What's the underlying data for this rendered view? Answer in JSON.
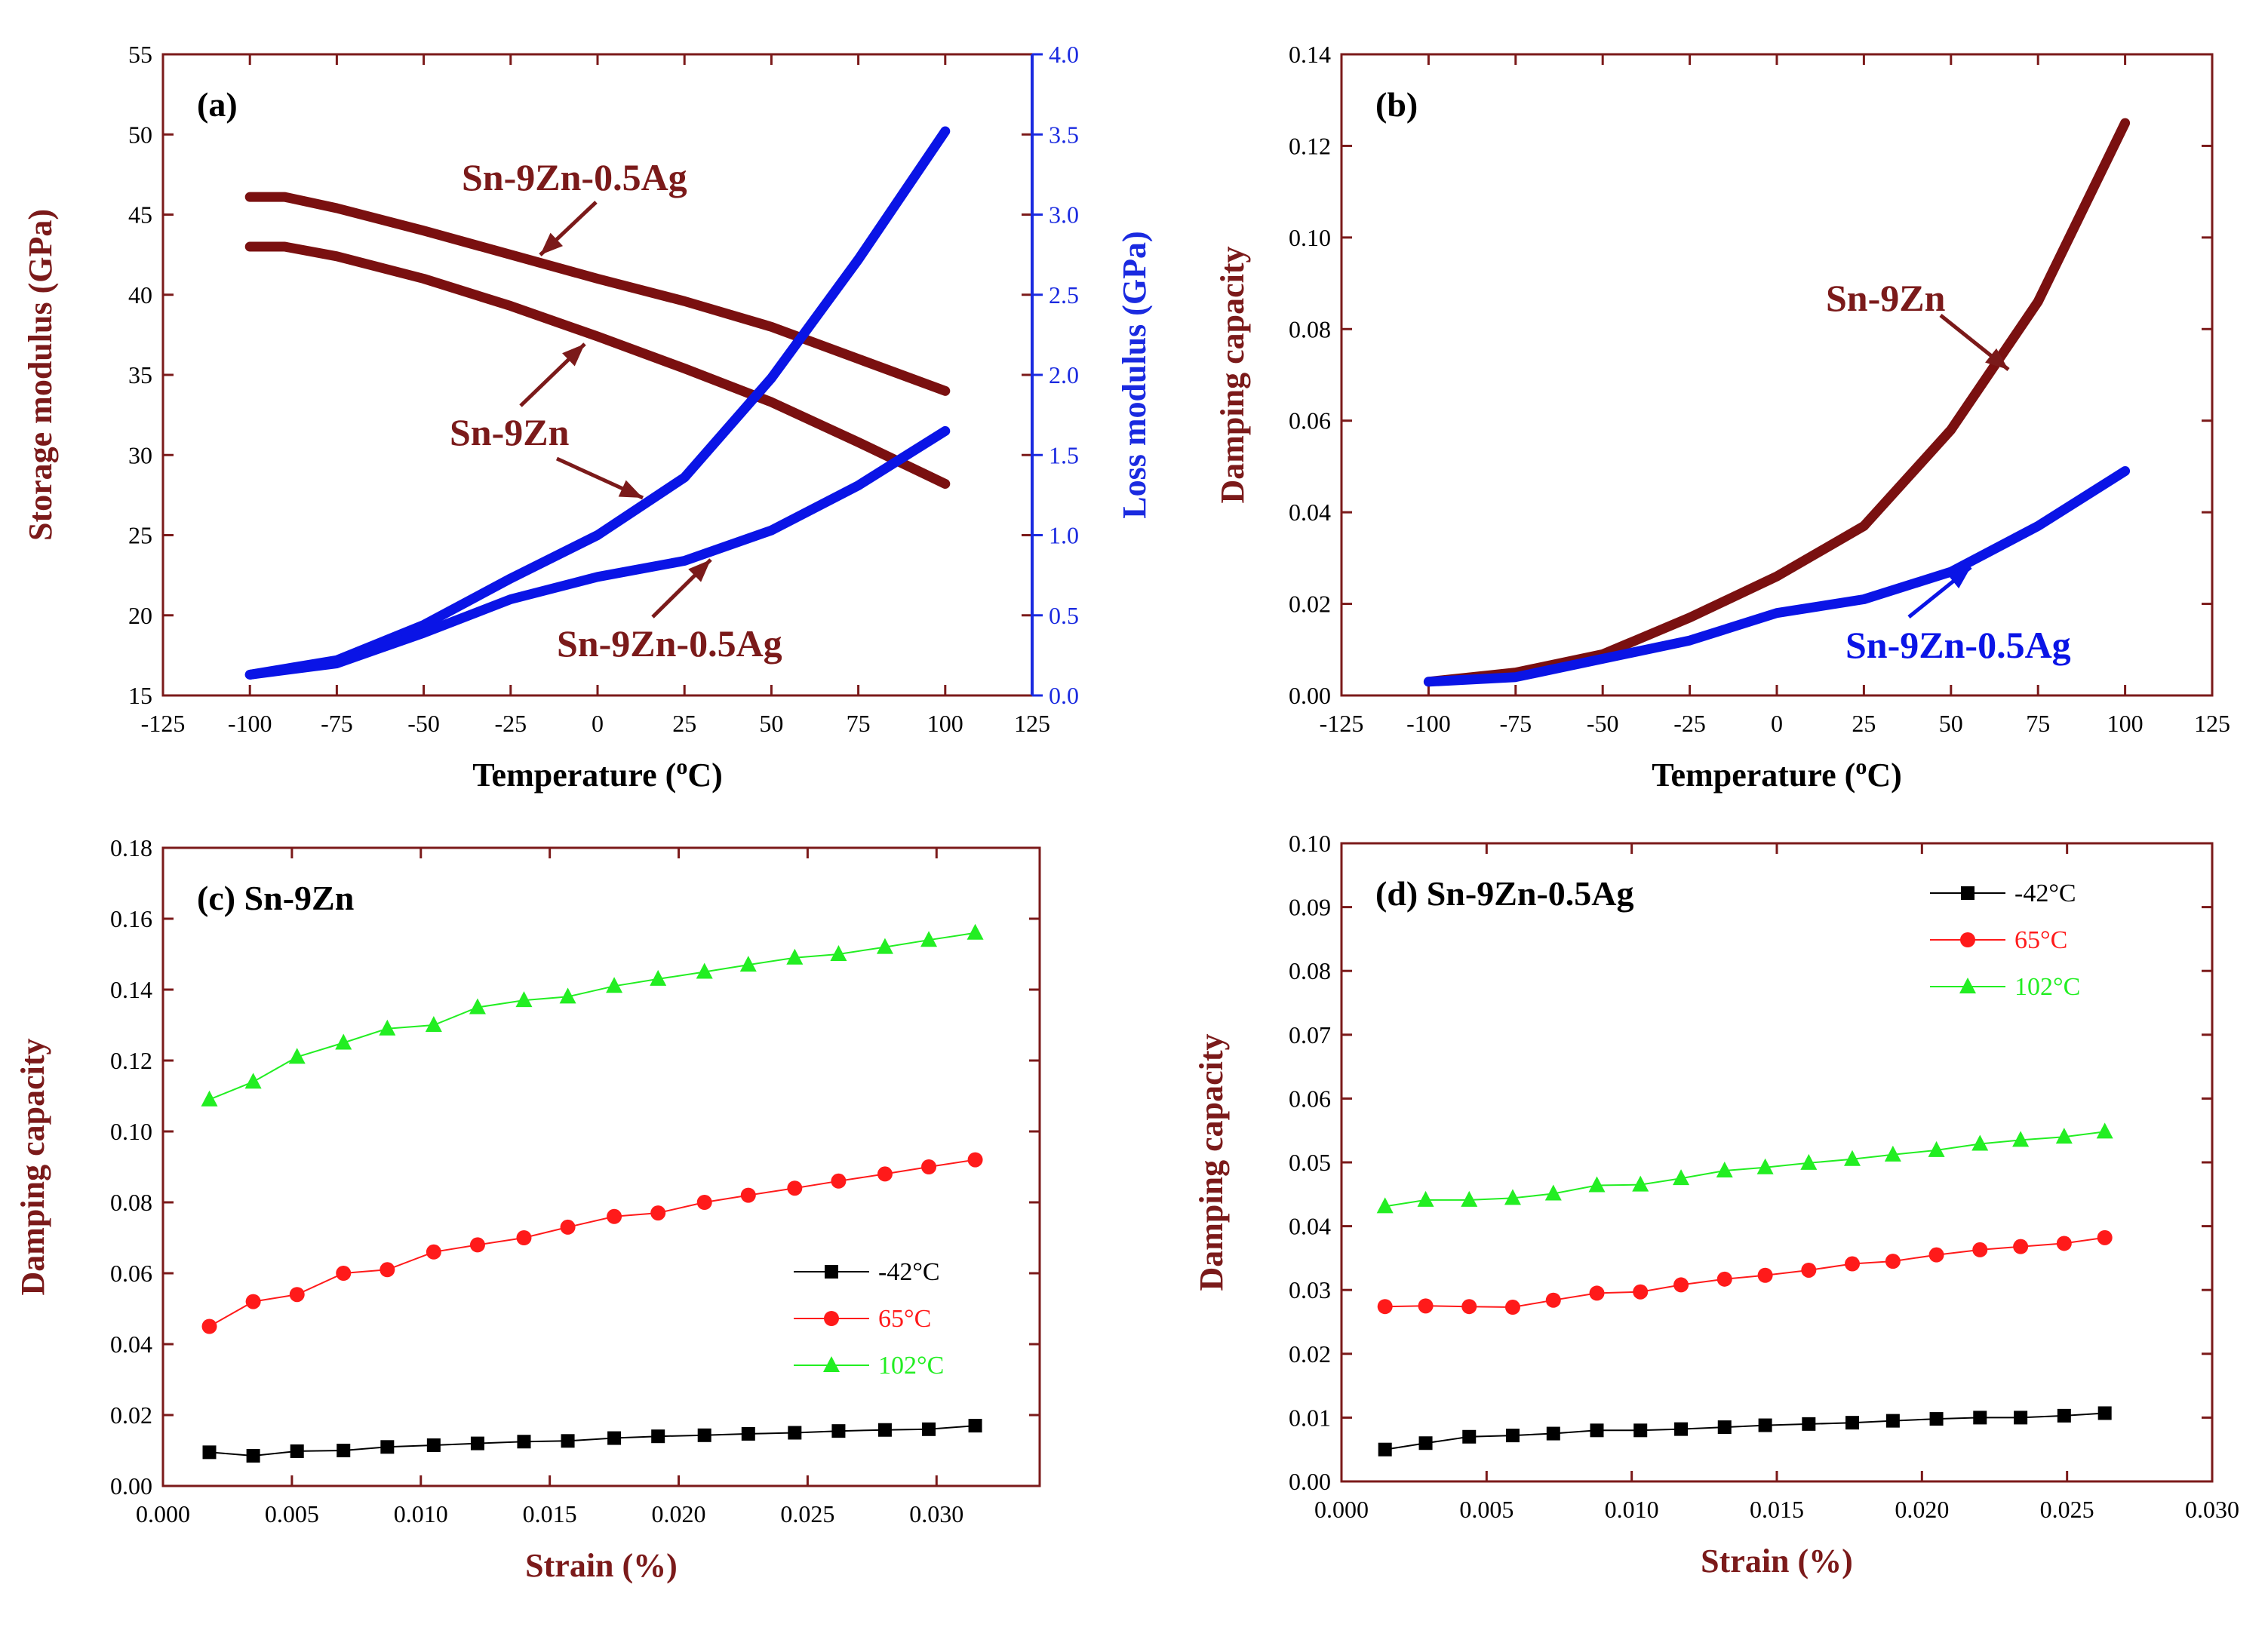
{
  "colors": {
    "frame": "#7b1a1a",
    "sn9zn": "#7a1010",
    "sn9zn05ag": "#0a14e6",
    "loss_axis": "#1a2ae0",
    "minus42": "#000000",
    "c65": "#ff1a1a",
    "c102": "#22ee22"
  },
  "chart_data": [
    {
      "id": "a",
      "type": "line",
      "panel_label": "(a)",
      "xlabel": "Temperature (oC)",
      "ylabel": "Storage modulus (GPa)",
      "y2label": "Loss modulus (GPa)",
      "xlim": [
        -125,
        125
      ],
      "ylim": [
        15,
        55
      ],
      "y2lim": [
        0.0,
        4.0
      ],
      "xticks": [
        "-125",
        "-100",
        "-75",
        "-50",
        "-25",
        "0",
        "25",
        "50",
        "75",
        "100",
        "125"
      ],
      "yticks": [
        "15",
        "20",
        "25",
        "30",
        "35",
        "40",
        "45",
        "50",
        "55"
      ],
      "y2ticks": [
        "0.0",
        "0.5",
        "1.0",
        "1.5",
        "2.0",
        "2.5",
        "3.0",
        "3.5",
        "4.0"
      ],
      "annotations": [
        "Sn-9Zn-0.5Ag",
        "Sn-9Zn",
        "Sn-9Zn-0.5Ag"
      ],
      "series": [
        {
          "label": "Sn-9Zn-0.5Ag",
          "axis": "left",
          "color_key": "sn9zn",
          "x": [
            -100,
            -90,
            -75,
            -50,
            -25,
            0,
            25,
            50,
            75,
            100
          ],
          "y": [
            46.1,
            46.1,
            45.4,
            44.0,
            42.5,
            41.0,
            39.6,
            38.0,
            36.0,
            34.0
          ]
        },
        {
          "label": "Sn-9Zn",
          "axis": "left",
          "color_key": "sn9zn",
          "x": [
            -100,
            -90,
            -75,
            -50,
            -25,
            0,
            25,
            50,
            75,
            100
          ],
          "y": [
            43.0,
            43.0,
            42.4,
            41.0,
            39.3,
            37.4,
            35.4,
            33.3,
            30.8,
            28.2
          ]
        },
        {
          "label": "Sn-9Zn",
          "axis": "right",
          "color_key": "sn9zn05ag",
          "x": [
            -100,
            -75,
            -50,
            -25,
            0,
            25,
            50,
            75,
            100
          ],
          "y": [
            0.13,
            0.22,
            0.44,
            0.73,
            1.0,
            1.36,
            1.98,
            2.72,
            3.52
          ]
        },
        {
          "label": "Sn-9Zn-0.5Ag",
          "axis": "right",
          "color_key": "sn9zn05ag",
          "x": [
            -100,
            -75,
            -50,
            -25,
            0,
            25,
            50,
            75,
            100
          ],
          "y": [
            0.13,
            0.2,
            0.39,
            0.6,
            0.74,
            0.84,
            1.03,
            1.31,
            1.65
          ]
        }
      ]
    },
    {
      "id": "b",
      "type": "line",
      "panel_label": "(b)",
      "xlabel": "Temperature (oC)",
      "ylabel": "Damping capacity",
      "xlim": [
        -125,
        125
      ],
      "ylim": [
        0.0,
        0.14
      ],
      "xticks": [
        "-125",
        "-100",
        "-75",
        "-50",
        "-25",
        "0",
        "25",
        "50",
        "75",
        "100",
        "125"
      ],
      "yticks": [
        "0.00",
        "0.02",
        "0.04",
        "0.06",
        "0.08",
        "0.10",
        "0.12",
        "0.14"
      ],
      "annotations": [
        "Sn-9Zn",
        "Sn-9Zn-0.5Ag"
      ],
      "series": [
        {
          "label": "Sn-9Zn",
          "color_key": "sn9zn",
          "x": [
            -100,
            -75,
            -50,
            -25,
            0,
            25,
            50,
            75,
            100
          ],
          "y": [
            0.003,
            0.005,
            0.009,
            0.017,
            0.026,
            0.037,
            0.058,
            0.086,
            0.125
          ]
        },
        {
          "label": "Sn-9Zn-0.5Ag",
          "color_key": "sn9zn05ag",
          "x": [
            -100,
            -75,
            -50,
            -25,
            0,
            25,
            50,
            75,
            100
          ],
          "y": [
            0.003,
            0.004,
            0.008,
            0.012,
            0.018,
            0.021,
            0.027,
            0.037,
            0.049
          ]
        }
      ]
    },
    {
      "id": "c",
      "type": "line",
      "panel_label": "(c) Sn-9Zn",
      "xlabel": "Strain (%)",
      "ylabel": "Damping capacity",
      "xlim": [
        0.0,
        0.034
      ],
      "ylim": [
        0.0,
        0.18
      ],
      "xticks": [
        "0.000",
        "0.005",
        "0.010",
        "0.015",
        "0.020",
        "0.025",
        "0.030"
      ],
      "xtick_values": [
        0.0,
        0.005,
        0.01,
        0.015,
        0.02,
        0.025,
        0.03
      ],
      "yticks": [
        "0.00",
        "0.02",
        "0.04",
        "0.06",
        "0.08",
        "0.10",
        "0.12",
        "0.14",
        "0.16",
        "0.18"
      ],
      "legend": {
        "position": "center-right",
        "entries": [
          "-42°C",
          "65°C",
          "102°C"
        ]
      },
      "x": [
        0.0018,
        0.0035,
        0.0052,
        0.007,
        0.0087,
        0.0105,
        0.0122,
        0.014,
        0.0157,
        0.0175,
        0.0192,
        0.021,
        0.0227,
        0.0245,
        0.0262,
        0.028,
        0.0297,
        0.0315
      ],
      "series": [
        {
          "label": "-42°C",
          "marker": "square",
          "color_key": "minus42",
          "y": [
            0.0095,
            0.0085,
            0.0098,
            0.01,
            0.011,
            0.0115,
            0.012,
            0.0125,
            0.0127,
            0.0135,
            0.014,
            0.0143,
            0.0147,
            0.015,
            0.0155,
            0.0158,
            0.016,
            0.017
          ]
        },
        {
          "label": "65°C",
          "marker": "circle",
          "color_key": "c65",
          "y": [
            0.045,
            0.052,
            0.054,
            0.06,
            0.061,
            0.066,
            0.068,
            0.07,
            0.073,
            0.076,
            0.077,
            0.08,
            0.082,
            0.084,
            0.086,
            0.088,
            0.09,
            0.092
          ]
        },
        {
          "label": "102°C",
          "marker": "triangle",
          "color_key": "c102",
          "y": [
            0.109,
            0.114,
            0.121,
            0.125,
            0.129,
            0.13,
            0.135,
            0.137,
            0.138,
            0.141,
            0.143,
            0.145,
            0.147,
            0.149,
            0.15,
            0.152,
            0.154,
            0.156
          ]
        }
      ]
    },
    {
      "id": "d",
      "type": "line",
      "panel_label": "(d) Sn-9Zn-0.5Ag",
      "xlabel": "Strain (%)",
      "ylabel": "Damping capacity",
      "xlim": [
        0.0,
        0.03
      ],
      "ylim": [
        0.0,
        0.1
      ],
      "xticks": [
        "0.000",
        "0.005",
        "0.010",
        "0.015",
        "0.020",
        "0.025",
        "0.030"
      ],
      "xtick_values": [
        0.0,
        0.005,
        0.01,
        0.015,
        0.02,
        0.025,
        0.03
      ],
      "yticks": [
        "0.00",
        "0.01",
        "0.02",
        "0.03",
        "0.04",
        "0.05",
        "0.06",
        "0.07",
        "0.08",
        "0.09",
        "0.10"
      ],
      "legend": {
        "position": "top-right",
        "entries": [
          "-42°C",
          "65°C",
          "102°C"
        ]
      },
      "x": [
        0.0015,
        0.0029,
        0.0044,
        0.0059,
        0.0073,
        0.0088,
        0.0103,
        0.0117,
        0.0132,
        0.0146,
        0.0161,
        0.0176,
        0.019,
        0.0205,
        0.022,
        0.0234,
        0.0249,
        0.0263
      ],
      "series": [
        {
          "label": "-42°C",
          "marker": "square",
          "color_key": "minus42",
          "y": [
            0.005,
            0.006,
            0.007,
            0.0072,
            0.0075,
            0.008,
            0.008,
            0.0082,
            0.0085,
            0.0088,
            0.009,
            0.0092,
            0.0095,
            0.0098,
            0.01,
            0.01,
            0.0103,
            0.0107
          ]
        },
        {
          "label": "65°C",
          "marker": "circle",
          "color_key": "c65",
          "y": [
            0.0274,
            0.0275,
            0.0274,
            0.0273,
            0.0284,
            0.0295,
            0.0297,
            0.0308,
            0.0317,
            0.0323,
            0.0331,
            0.0341,
            0.0345,
            0.0355,
            0.0363,
            0.0368,
            0.0373,
            0.0382
          ]
        },
        {
          "label": "102°C",
          "marker": "triangle",
          "color_key": "c102",
          "y": [
            0.0431,
            0.0441,
            0.0441,
            0.0444,
            0.0451,
            0.0464,
            0.0465,
            0.0475,
            0.0487,
            0.0492,
            0.0499,
            0.0505,
            0.0512,
            0.0519,
            0.0529,
            0.0535,
            0.054,
            0.0548
          ]
        }
      ]
    }
  ]
}
